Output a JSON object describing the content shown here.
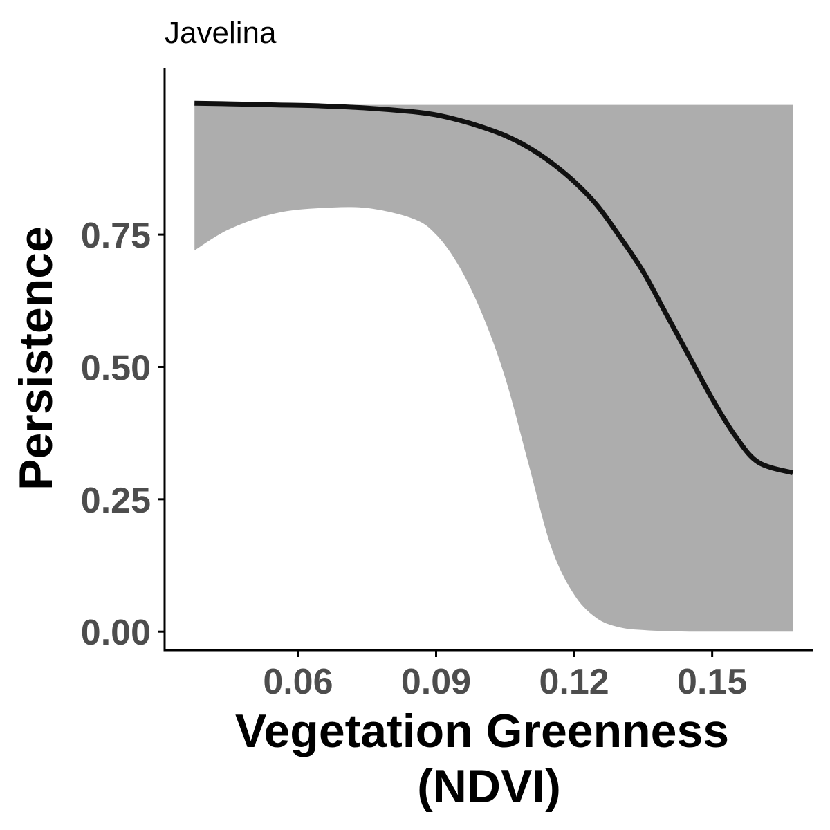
{
  "chart_data": {
    "type": "line",
    "title": "Javelina",
    "xlabel": [
      "Vegetation Greenness",
      "(NDVI)"
    ],
    "ylabel": "Persistence",
    "xlim": [
      0.031,
      0.172
    ],
    "ylim": [
      -0.035,
      1.065
    ],
    "x_ticks": [
      0.06,
      0.09,
      0.12,
      0.15
    ],
    "x_tick_labels": [
      "0.06",
      "0.09",
      "0.12",
      "0.15"
    ],
    "y_ticks": [
      0,
      0.25,
      0.5,
      0.75
    ],
    "y_tick_labels": [
      "0.00",
      "0.25",
      "0.50",
      "0.75"
    ],
    "grid": false,
    "legend": "none",
    "colors": {
      "line": "#111111",
      "ribbon": "#adadad",
      "axis": "#000000"
    },
    "series": [
      {
        "x": [
          0.0375,
          0.045,
          0.055,
          0.065,
          0.075,
          0.085,
          0.09,
          0.095,
          0.1,
          0.105,
          0.11,
          0.115,
          0.12,
          0.125,
          0.13,
          0.135,
          0.14,
          0.145,
          0.15,
          0.155,
          0.16,
          0.1675
        ],
        "y": [
          0.998,
          0.997,
          0.995,
          0.993,
          0.989,
          0.982,
          0.976,
          0.966,
          0.953,
          0.937,
          0.915,
          0.886,
          0.85,
          0.805,
          0.745,
          0.68,
          0.6,
          0.52,
          0.44,
          0.37,
          0.32,
          0.3
        ],
        "lower": [
          0.72,
          0.76,
          0.79,
          0.8,
          0.8,
          0.78,
          0.75,
          0.69,
          0.6,
          0.48,
          0.32,
          0.16,
          0.07,
          0.025,
          0.008,
          0.003,
          0.001,
          0.0,
          0.0,
          0.0,
          0.0,
          0.0
        ],
        "upper": [
          0.995,
          0.995,
          0.995,
          0.995,
          0.995,
          0.995,
          0.995,
          0.995,
          0.995,
          0.995,
          0.995,
          0.995,
          0.995,
          0.995,
          0.995,
          0.995,
          0.995,
          0.995,
          0.995,
          0.995,
          0.995,
          0.995
        ]
      }
    ]
  }
}
